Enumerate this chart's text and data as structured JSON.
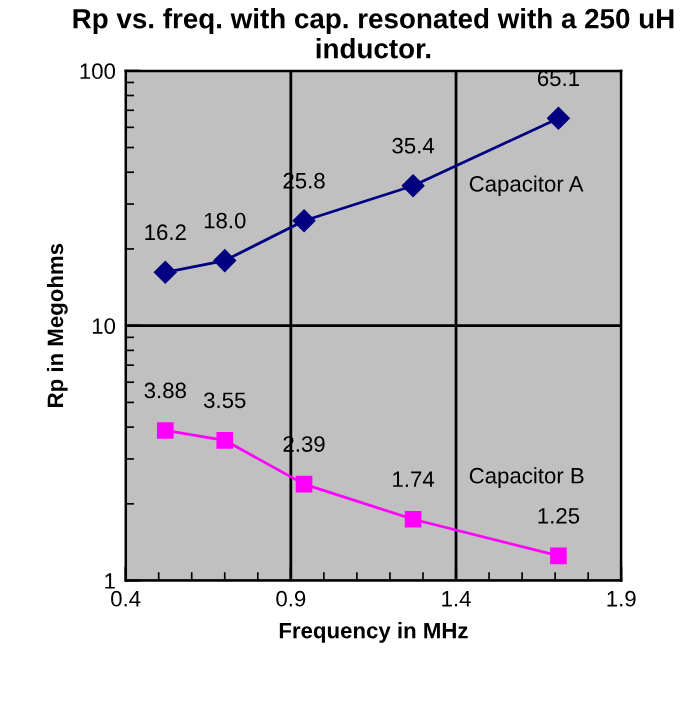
{
  "chart_data": {
    "type": "line",
    "title": "Rp vs. freq. with cap. resonated with a 250 uH inductor.",
    "xlabel": "Frequency in MHz",
    "ylabel": "Rp in Megohms",
    "log": "y",
    "grid": true,
    "data_labels": true,
    "legend": false,
    "xlim": [
      0.4,
      1.9
    ],
    "xticks": [
      0.4,
      0.9,
      1.4,
      1.9
    ],
    "ylim": [
      1,
      100
    ],
    "yticks": [
      1,
      10,
      100
    ],
    "series": [
      {
        "name": "Capacitor A",
        "color": "#000080",
        "marker": "diamond",
        "x": [
          0.52,
          0.7,
          0.94,
          1.27,
          1.71
        ],
        "values": [
          16.2,
          18.0,
          25.8,
          35.4,
          65.1
        ],
        "value_labels": [
          "16.2",
          "18.0",
          "25.8",
          "35.4",
          "65.1"
        ]
      },
      {
        "name": "Capacitor B",
        "color": "#ff00ff",
        "marker": "square",
        "x": [
          0.52,
          0.7,
          0.94,
          1.27,
          1.71
        ],
        "values": [
          3.88,
          3.55,
          2.39,
          1.74,
          1.25
        ],
        "value_labels": [
          "3.88",
          "3.55",
          "2.39",
          "1.74",
          "1.25"
        ]
      }
    ]
  }
}
